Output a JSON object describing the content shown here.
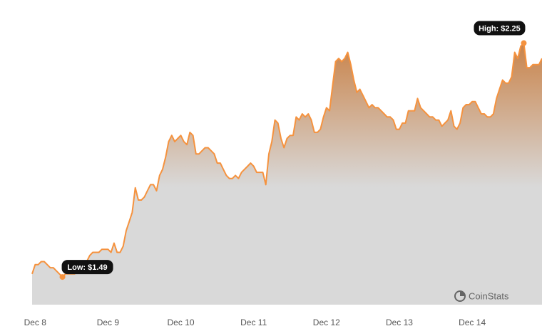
{
  "chart_data": {
    "type": "area",
    "values": [
      1.5,
      1.53,
      1.53,
      1.54,
      1.54,
      1.53,
      1.52,
      1.52,
      1.51,
      1.5,
      1.49,
      1.5,
      1.5,
      1.5,
      1.5,
      1.51,
      1.52,
      1.53,
      1.54,
      1.56,
      1.57,
      1.57,
      1.57,
      1.58,
      1.58,
      1.58,
      1.57,
      1.6,
      1.57,
      1.57,
      1.59,
      1.64,
      1.67,
      1.7,
      1.78,
      1.74,
      1.74,
      1.75,
      1.77,
      1.79,
      1.79,
      1.77,
      1.82,
      1.84,
      1.88,
      1.93,
      1.95,
      1.93,
      1.94,
      1.95,
      1.93,
      1.92,
      1.96,
      1.95,
      1.89,
      1.89,
      1.9,
      1.91,
      1.91,
      1.9,
      1.89,
      1.86,
      1.86,
      1.84,
      1.82,
      1.81,
      1.81,
      1.82,
      1.81,
      1.83,
      1.84,
      1.85,
      1.86,
      1.85,
      1.83,
      1.83,
      1.83,
      1.79,
      1.89,
      1.93,
      2.0,
      1.99,
      1.94,
      1.91,
      1.94,
      1.95,
      1.95,
      2.01,
      2.0,
      2.02,
      2.01,
      2.02,
      2.0,
      1.96,
      1.96,
      1.97,
      2.01,
      2.04,
      2.03,
      2.11,
      2.19,
      2.2,
      2.19,
      2.2,
      2.22,
      2.18,
      2.13,
      2.09,
      2.1,
      2.08,
      2.06,
      2.04,
      2.05,
      2.04,
      2.04,
      2.03,
      2.02,
      2.01,
      2.01,
      2.0,
      1.97,
      1.97,
      1.99,
      1.99,
      2.03,
      2.03,
      2.03,
      2.07,
      2.04,
      2.03,
      2.02,
      2.01,
      2.01,
      2.0,
      2.0,
      1.98,
      1.99,
      2.0,
      2.03,
      1.98,
      1.97,
      1.99,
      2.04,
      2.05,
      2.05,
      2.06,
      2.06,
      2.04,
      2.02,
      2.02,
      2.01,
      2.01,
      2.02,
      2.07,
      2.1,
      2.13,
      2.12,
      2.12,
      2.14,
      2.22,
      2.2,
      2.24,
      2.25,
      2.17,
      2.17,
      2.18,
      2.18,
      2.18,
      2.2
    ],
    "color": "#f5923e",
    "xlim": [
      0,
      168
    ],
    "xticks": [
      {
        "value": 1,
        "label": "Dec 8"
      },
      {
        "value": 25,
        "label": "Dec 9"
      },
      {
        "value": 49,
        "label": "Dec 10"
      },
      {
        "value": 73,
        "label": "Dec 11"
      },
      {
        "value": 97,
        "label": "Dec 12"
      },
      {
        "value": 121,
        "label": "Dec 13"
      },
      {
        "value": 145,
        "label": "Dec 14"
      }
    ],
    "ylim": [
      1.4,
      2.39
    ],
    "low_label": "Low: $1.49",
    "high_label": "High: $2.25",
    "watermark": "CoinStats"
  }
}
